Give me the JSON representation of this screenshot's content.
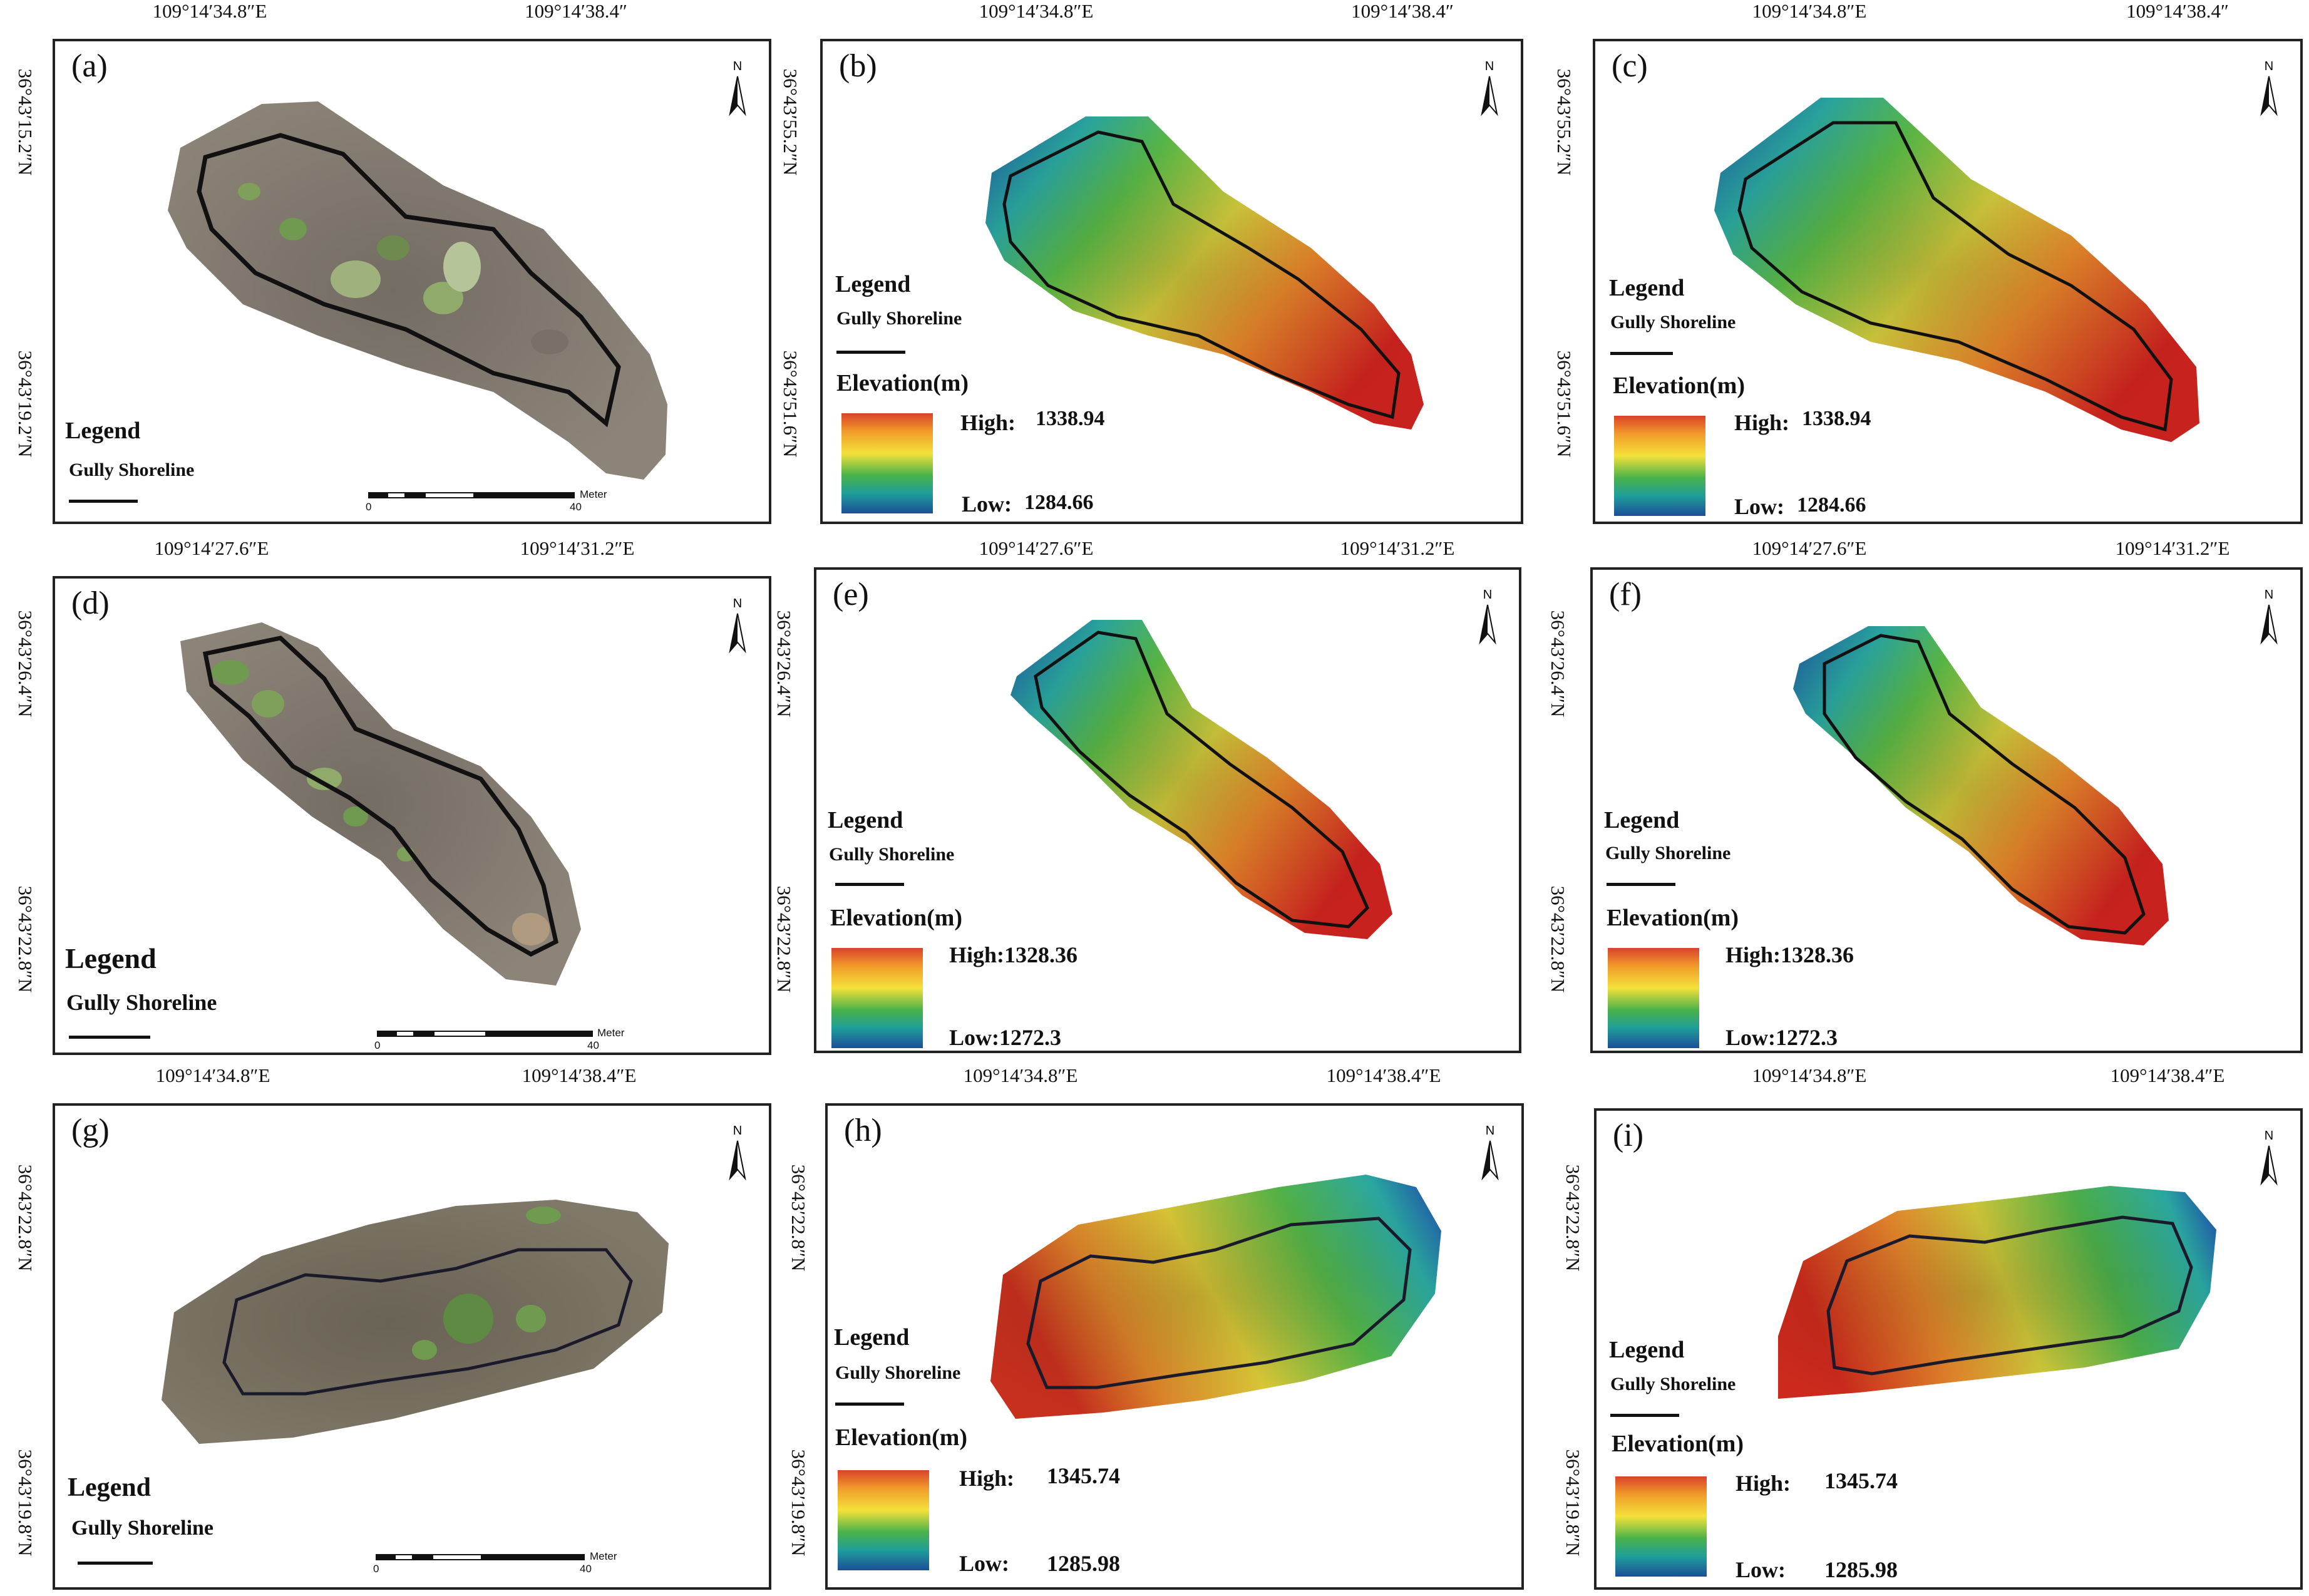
{
  "common": {
    "legend_title": "Legend",
    "gully_shoreline": "Gully Shoreline",
    "elevation_title": "Elevation(m)",
    "north_letter": "N",
    "scale_unit": "Meter",
    "scale_zero": "0",
    "scale_max": "40"
  },
  "row1": {
    "lon": [
      "109°14′34.8″E",
      "109°14′38.4″"
    ],
    "lat": [
      "36°43′15.2″N",
      "36°43′19.2″N"
    ],
    "lat_dem": [
      "36°43′55.2″N",
      "36°43′51.6″N"
    ],
    "high_label": "High:",
    "high": "1338.94",
    "low_label": "Low:",
    "low": "1284.66"
  },
  "row2": {
    "lon": [
      "109°14′27.6″E",
      "109°14′31.2″E"
    ],
    "lat": [
      "36°43′26.4″N",
      "36°43′22.8″N"
    ],
    "high": "High:1328.36",
    "low": "Low:1272.3"
  },
  "row3": {
    "lon": [
      "109°14′34.8″E",
      "109°14′38.4″E"
    ],
    "lat": [
      "36°43′22.8″N",
      "36°43′19.8″N"
    ],
    "high_label": "High:",
    "high": "1345.74",
    "low_label": "Low:",
    "low": "1285.98"
  },
  "panels": {
    "a": "(a)",
    "b": "(b)",
    "c": "(c)",
    "d": "(d)",
    "e": "(e)",
    "f": "(f)",
    "g": "(g)",
    "h": "(h)",
    "i": "(i)"
  },
  "colors": {
    "ortho": "#8d8479",
    "vegetation": "#6f9a4f",
    "shoreline": "#111111",
    "ramp": [
      "#d9422a",
      "#f19a2a",
      "#f4e13a",
      "#49b24a",
      "#1f9e9a",
      "#1c4e98"
    ]
  }
}
